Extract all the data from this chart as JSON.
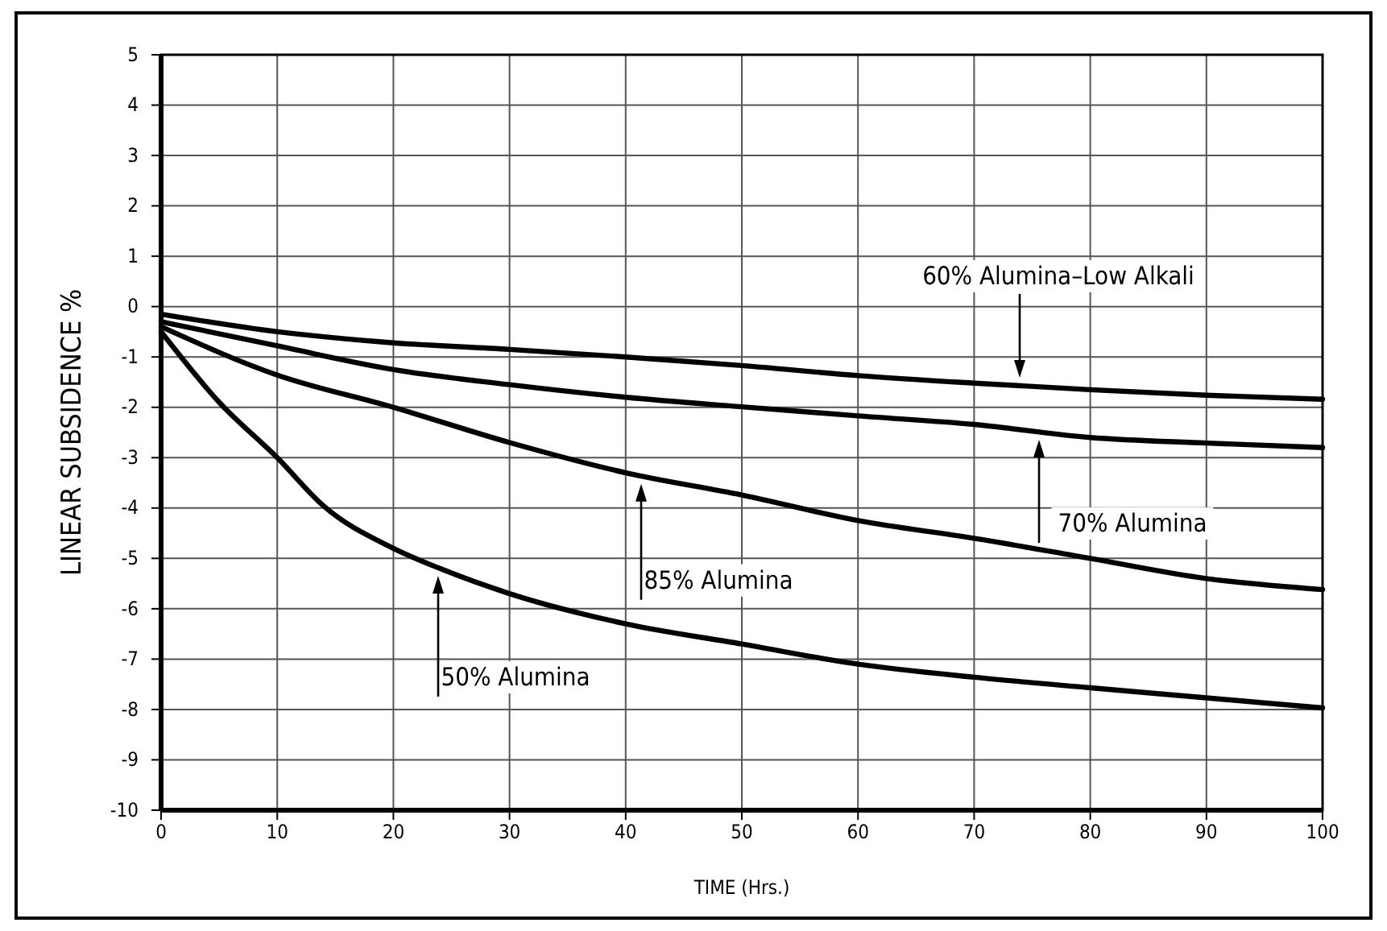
{
  "chart_data": {
    "type": "line",
    "xlabel": "TIME (Hrs.)",
    "ylabel": "LINEAR SUBSIDENCE %",
    "xlim": [
      0,
      100
    ],
    "ylim": [
      -10,
      5
    ],
    "xticks": [
      0,
      10,
      20,
      30,
      40,
      50,
      60,
      70,
      80,
      90,
      100
    ],
    "yticks": [
      -10,
      -9,
      -8,
      -7,
      -6,
      -5,
      -4,
      -3,
      -2,
      -1,
      0,
      1,
      2,
      3,
      4,
      5
    ],
    "grid": true,
    "marker": "none",
    "line_style": "solid",
    "series": [
      {
        "name": "60% Alumina–Low Alkali",
        "color": "#000000",
        "x": [
          0,
          10,
          20,
          30,
          40,
          50,
          60,
          70,
          80,
          90,
          100
        ],
        "values": [
          -0.15,
          -0.5,
          -0.72,
          -0.85,
          -1.0,
          -1.17,
          -1.37,
          -1.52,
          -1.65,
          -1.76,
          -1.84
        ]
      },
      {
        "name": "70% Alumina",
        "color": "#000000",
        "x": [
          0,
          10,
          20,
          30,
          40,
          50,
          60,
          70,
          80,
          90,
          100
        ],
        "values": [
          -0.3,
          -0.78,
          -1.25,
          -1.55,
          -1.8,
          -1.99,
          -2.17,
          -2.34,
          -2.6,
          -2.71,
          -2.8
        ]
      },
      {
        "name": "85% Alumina",
        "color": "#000000",
        "x": [
          0,
          10,
          20,
          30,
          40,
          50,
          60,
          70,
          80,
          90,
          100
        ],
        "values": [
          -0.4,
          -1.36,
          -2.0,
          -2.7,
          -3.3,
          -3.74,
          -4.25,
          -4.6,
          -5.0,
          -5.4,
          -5.62
        ]
      },
      {
        "name": "50% Alumina",
        "color": "#000000",
        "x": [
          0,
          5,
          10,
          14,
          20,
          24,
          30,
          40,
          50,
          60,
          70,
          80,
          90,
          100
        ],
        "values": [
          -0.5,
          -1.9,
          -3.0,
          -3.96,
          -4.8,
          -5.2,
          -5.7,
          -6.3,
          -6.7,
          -7.1,
          -7.36,
          -7.57,
          -7.77,
          -7.97
        ]
      }
    ]
  }
}
